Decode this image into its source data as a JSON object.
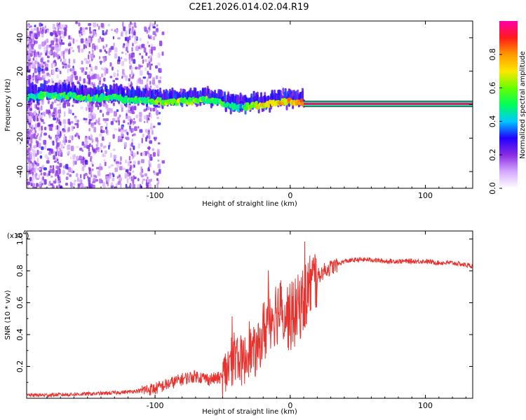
{
  "title": "C2E1.2026.014.02.04.R19",
  "chart_data": [
    {
      "type": "heatmap",
      "name": "spectrogram",
      "xlabel": "Height of straight line (km)",
      "ylabel": "Frequency (Hz)",
      "xlim": [
        -195,
        135
      ],
      "ylim": [
        -50,
        50
      ],
      "x_ticks": [
        -100,
        0,
        100
      ],
      "x_tick_labels": [
        "-100",
        "0",
        "100"
      ],
      "y_ticks": [
        -40,
        -20,
        0,
        20,
        40
      ],
      "y_tick_labels": [
        "-40",
        "-20",
        "0",
        "20",
        "40"
      ],
      "colorbar": {
        "label": "Normalized spectral amplitude",
        "range": [
          0,
          1
        ],
        "ticks": [
          0.0,
          0.2,
          0.4,
          0.6,
          0.8
        ],
        "tick_labels": [
          "0.0",
          "0.2",
          "0.4",
          "0.6",
          "0.8"
        ],
        "colors": [
          "#ffffff",
          "#d5a8ff",
          "#8a2be2",
          "#2000ff",
          "#00c8ff",
          "#00ff5a",
          "#66ff00",
          "#ffe600",
          "#ff9a00",
          "#ff1a1a",
          "#ff00aa"
        ]
      },
      "ridge": [
        {
          "x": -190,
          "y": 5,
          "a": 0.45
        },
        {
          "x": -180,
          "y": 6,
          "a": 0.5
        },
        {
          "x": -170,
          "y": 5,
          "a": 0.5
        },
        {
          "x": -160,
          "y": 5,
          "a": 0.52
        },
        {
          "x": -150,
          "y": 4,
          "a": 0.5
        },
        {
          "x": -140,
          "y": 4,
          "a": 0.5
        },
        {
          "x": -130,
          "y": 4,
          "a": 0.48
        },
        {
          "x": -120,
          "y": 3,
          "a": 0.5
        },
        {
          "x": -110,
          "y": 3,
          "a": 0.5
        },
        {
          "x": -100,
          "y": 2,
          "a": 0.55
        },
        {
          "x": -90,
          "y": 2,
          "a": 0.6
        },
        {
          "x": -80,
          "y": 2,
          "a": 0.6
        },
        {
          "x": -70,
          "y": 2,
          "a": 0.58
        },
        {
          "x": -60,
          "y": 3,
          "a": 0.55
        },
        {
          "x": -50,
          "y": 1,
          "a": 0.5
        },
        {
          "x": -40,
          "y": -2,
          "a": 0.45
        },
        {
          "x": -30,
          "y": -1,
          "a": 0.55
        },
        {
          "x": -20,
          "y": 0,
          "a": 0.7
        },
        {
          "x": -10,
          "y": 1,
          "a": 0.72
        },
        {
          "x": 0,
          "y": 2,
          "a": 0.75
        },
        {
          "x": 10,
          "y": 1,
          "a": 0.78
        }
      ],
      "carrier": {
        "x_start": 10,
        "x_end": 135,
        "y": 0.5,
        "a": 0.95
      }
    },
    {
      "type": "line",
      "name": "snr",
      "xlabel": "Height of straight line (km)",
      "ylabel": "SNR (10 * v/v)",
      "y_multiplier_label": "(x10",
      "y_multiplier_exponent": "4",
      "xlim": [
        -195,
        135
      ],
      "ylim": [
        0,
        1.05
      ],
      "x_ticks": [
        -100,
        0,
        100
      ],
      "x_tick_labels": [
        "-100",
        "0",
        "100"
      ],
      "y_ticks": [
        0.2,
        0.4,
        0.6,
        0.8,
        1.0
      ],
      "y_tick_labels": [
        "0.2",
        "0.4",
        "0.6",
        "0.8",
        "1.0"
      ],
      "color": "#e8322e",
      "series": [
        {
          "name": "SNR",
          "x": [
            -195,
            -180,
            -160,
            -140,
            -120,
            -100,
            -90,
            -80,
            -70,
            -60,
            -50,
            -45,
            -40,
            -35,
            -30,
            -25,
            -20,
            -15,
            -10,
            -5,
            0,
            5,
            10,
            15,
            20,
            25,
            30,
            40,
            50,
            60,
            70,
            80,
            90,
            100,
            110,
            120,
            135
          ],
          "values": [
            0.02,
            0.02,
            0.025,
            0.03,
            0.04,
            0.06,
            0.09,
            0.12,
            0.14,
            0.12,
            0.13,
            0.2,
            0.28,
            0.22,
            0.3,
            0.28,
            0.4,
            0.52,
            0.55,
            0.55,
            0.5,
            0.55,
            0.62,
            0.72,
            0.76,
            0.8,
            0.82,
            0.86,
            0.87,
            0.87,
            0.86,
            0.86,
            0.86,
            0.86,
            0.85,
            0.85,
            0.83
          ]
        }
      ]
    }
  ]
}
